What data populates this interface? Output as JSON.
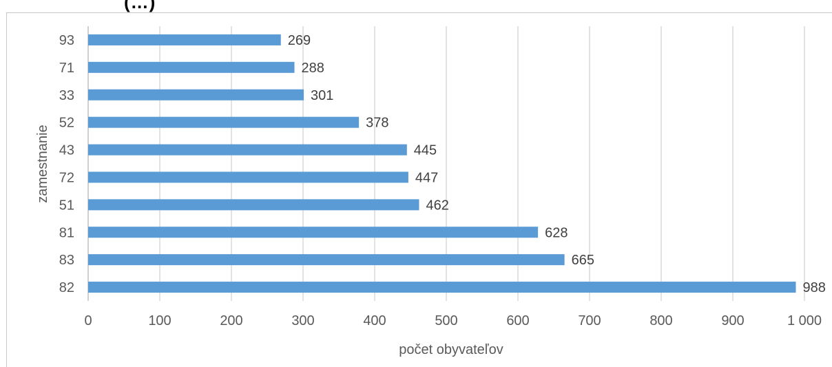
{
  "chart_data": {
    "type": "bar",
    "orientation": "horizontal",
    "title_fragment": "(…)",
    "xlabel": "počet obyvateľov",
    "ylabel": "zamestnanie",
    "categories": [
      "93",
      "71",
      "33",
      "52",
      "43",
      "72",
      "51",
      "81",
      "83",
      "82"
    ],
    "values": [
      269,
      288,
      301,
      378,
      445,
      447,
      462,
      628,
      665,
      988
    ],
    "xlim": [
      0,
      1000
    ],
    "xticks": [
      "0",
      "100",
      "200",
      "300",
      "400",
      "500",
      "600",
      "700",
      "800",
      "900",
      "1 000"
    ],
    "grid": "vertical",
    "bar_color": "#5b9bd5",
    "grid_color": "#d9d9d9",
    "label_color": "#404040",
    "data_labels": true
  }
}
